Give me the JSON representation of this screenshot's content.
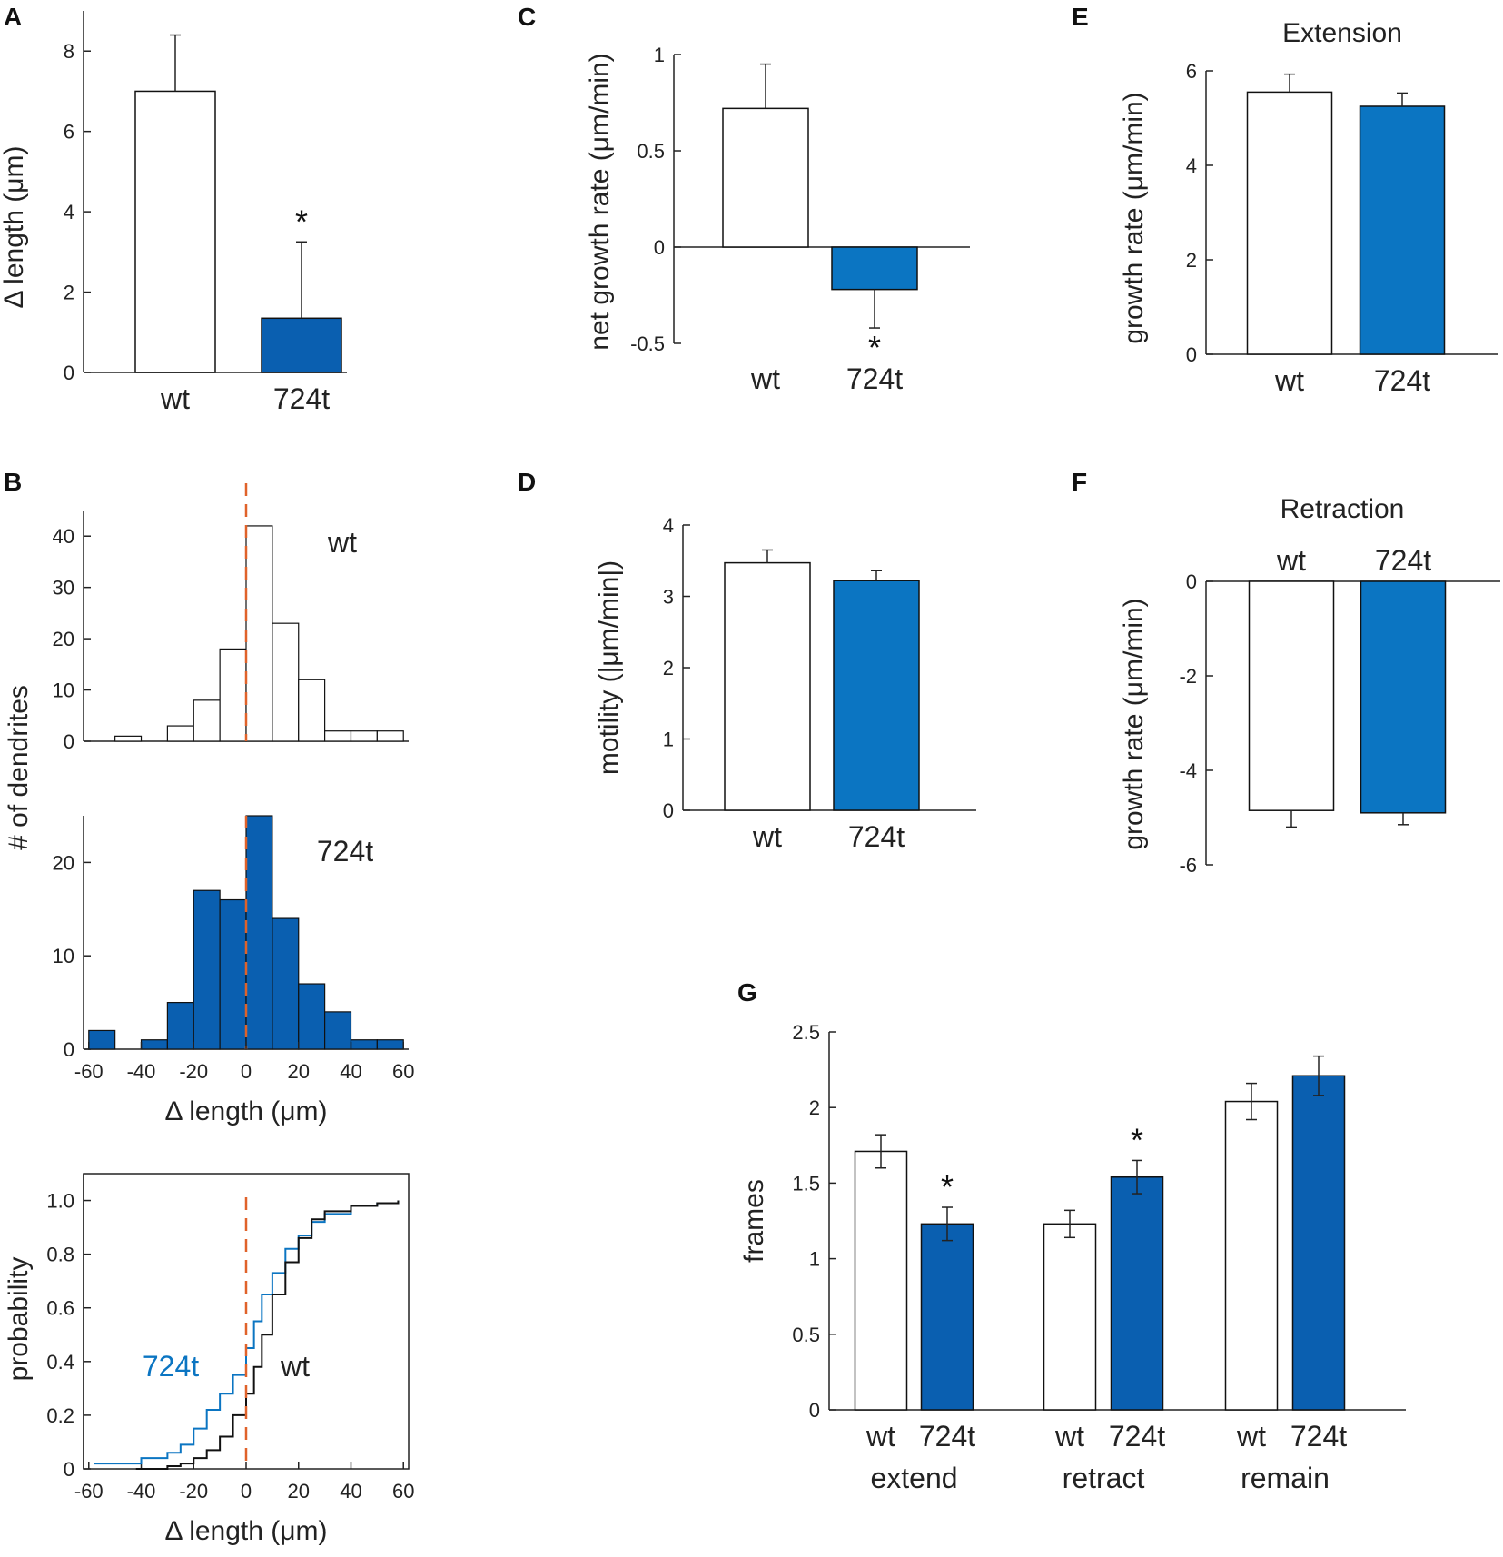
{
  "colors": {
    "blue": "#0a5fb0",
    "blue_light": "#0b75c2",
    "red_dash": "#e0622a",
    "black": "#111111"
  },
  "chart_data": [
    {
      "id": "A",
      "panel_label": "A",
      "type": "bar",
      "categories": [
        "wt",
        "724t"
      ],
      "values": [
        7.0,
        1.35
      ],
      "errors": [
        1.4,
        1.9
      ],
      "ylabel": "Δ length (μm)",
      "ylim": [
        0,
        9
      ],
      "yticks": [
        0,
        2,
        4,
        6,
        8
      ],
      "ytick_labels": [
        "0",
        "2",
        "4",
        "6",
        "8"
      ],
      "significance": [
        "",
        "*"
      ]
    },
    {
      "id": "B1",
      "panel_label": "B",
      "type": "bar",
      "subtype": "histogram",
      "series_label": "wt",
      "bin_edges": [
        -60,
        -50,
        -40,
        -30,
        -20,
        -10,
        0,
        10,
        20,
        30,
        40,
        50,
        60
      ],
      "counts": [
        0,
        1,
        0,
        3,
        8,
        18,
        42,
        23,
        12,
        2,
        2,
        2
      ],
      "ylim": [
        0,
        45
      ],
      "yticks": [
        0,
        10,
        20,
        30,
        40
      ],
      "ytick_labels": [
        "0",
        "10",
        "20",
        "30",
        "40"
      ],
      "shared_ylabel": "# of dendrites"
    },
    {
      "id": "B2",
      "type": "bar",
      "subtype": "histogram",
      "series_label": "724t",
      "bin_edges": [
        -60,
        -50,
        -40,
        -30,
        -20,
        -10,
        0,
        10,
        20,
        30,
        40,
        50,
        60
      ],
      "counts": [
        2,
        0,
        1,
        5,
        17,
        16,
        25,
        14,
        7,
        4,
        1,
        1
      ],
      "ylim": [
        0,
        25
      ],
      "yticks": [
        0,
        10,
        20
      ],
      "ytick_labels": [
        "0",
        "10",
        "20"
      ],
      "xticks": [
        -60,
        -40,
        -20,
        0,
        20,
        40,
        60
      ],
      "xtick_labels": [
        "-60",
        "-40",
        "-20",
        "0",
        "20",
        "40",
        "60"
      ],
      "xlabel": "Δ length (μm)"
    },
    {
      "id": "B3",
      "type": "line",
      "subtype": "cumulative",
      "xlabel": "Δ length (μm)",
      "ylabel": "probability",
      "xlim": [
        -62,
        62
      ],
      "ylim": [
        0,
        1.1
      ],
      "xticks": [
        -60,
        -40,
        -20,
        0,
        20,
        40,
        60
      ],
      "xtick_labels": [
        "-60",
        "-40",
        "-20",
        "0",
        "20",
        "40",
        "60"
      ],
      "yticks": [
        0,
        0.2,
        0.4,
        0.6,
        0.8,
        1.0
      ],
      "ytick_labels": [
        "0",
        "0.2",
        "0.4",
        "0.6",
        "0.8",
        "1.0"
      ],
      "series": [
        {
          "name": "724t",
          "x": [
            -58,
            -45,
            -40,
            -30,
            -25,
            -20,
            -15,
            -10,
            -5,
            0,
            3,
            6,
            10,
            15,
            20,
            25,
            30,
            40,
            50,
            58
          ],
          "y": [
            0.02,
            0.02,
            0.04,
            0.06,
            0.09,
            0.15,
            0.22,
            0.28,
            0.35,
            0.45,
            0.55,
            0.65,
            0.73,
            0.82,
            0.87,
            0.92,
            0.95,
            0.98,
            0.99,
            1.0
          ]
        },
        {
          "name": "wt",
          "x": [
            -42,
            -30,
            -25,
            -20,
            -15,
            -10,
            -5,
            0,
            3,
            6,
            10,
            15,
            20,
            25,
            30,
            40,
            50,
            58
          ],
          "y": [
            0.0,
            0.01,
            0.02,
            0.04,
            0.07,
            0.12,
            0.2,
            0.28,
            0.38,
            0.5,
            0.65,
            0.77,
            0.86,
            0.93,
            0.96,
            0.98,
            0.99,
            1.0
          ]
        }
      ],
      "annotations": [
        "724t",
        "wt"
      ]
    },
    {
      "id": "C",
      "panel_label": "C",
      "type": "bar",
      "categories": [
        "wt",
        "724t"
      ],
      "values": [
        0.72,
        -0.22
      ],
      "errors": [
        0.23,
        0.2
      ],
      "ylabel": "net growth rate (μm/min)",
      "ylim": [
        -0.5,
        1.0
      ],
      "yticks": [
        -0.5,
        0,
        0.5,
        1
      ],
      "ytick_labels": [
        "-0.5",
        "0",
        "0.5",
        "1"
      ],
      "significance": [
        "",
        "*"
      ]
    },
    {
      "id": "D",
      "panel_label": "D",
      "type": "bar",
      "categories": [
        "wt",
        "724t"
      ],
      "values": [
        3.47,
        3.22
      ],
      "errors": [
        0.18,
        0.14
      ],
      "ylabel": "motility (|μm/min|)",
      "ylim": [
        0,
        4
      ],
      "yticks": [
        0,
        1,
        2,
        3,
        4
      ],
      "ytick_labels": [
        "0",
        "1",
        "2",
        "3",
        "4"
      ]
    },
    {
      "id": "E",
      "panel_label": "E",
      "type": "bar",
      "title": "Extension",
      "categories": [
        "wt",
        "724t"
      ],
      "values": [
        5.55,
        5.25
      ],
      "errors": [
        0.38,
        0.28
      ],
      "ylabel": "growth rate (μm/min)",
      "ylim": [
        0,
        6
      ],
      "yticks": [
        0,
        2,
        4,
        6
      ],
      "ytick_labels": [
        "0",
        "2",
        "4",
        "6"
      ]
    },
    {
      "id": "F",
      "panel_label": "F",
      "type": "bar",
      "title": "Retraction",
      "categories": [
        "wt",
        "724t"
      ],
      "values": [
        -4.85,
        -4.9
      ],
      "errors": [
        0.35,
        0.25
      ],
      "ylabel": "growth rate (μm/min)",
      "ylim": [
        -6,
        0
      ],
      "yticks": [
        0,
        -2,
        -4,
        -6
      ],
      "ytick_labels": [
        "0",
        "-2",
        "-4",
        "-6"
      ]
    },
    {
      "id": "G",
      "panel_label": "G",
      "type": "bar",
      "groups": [
        "extend",
        "retract",
        "remain"
      ],
      "categories": [
        "wt",
        "724t",
        "wt",
        "724t",
        "wt",
        "724t"
      ],
      "values": [
        1.71,
        1.23,
        1.23,
        1.54,
        2.04,
        2.21
      ],
      "errors": [
        0.11,
        0.11,
        0.09,
        0.11,
        0.12,
        0.13
      ],
      "ylabel": "frames",
      "ylim": [
        0,
        2.5
      ],
      "yticks": [
        0,
        0.5,
        1,
        1.5,
        2,
        2.5
      ],
      "ytick_labels": [
        "0",
        "0.5",
        "1",
        "1.5",
        "2",
        "2.5"
      ],
      "significance": [
        "",
        "*",
        "",
        "*",
        "",
        ""
      ]
    }
  ]
}
